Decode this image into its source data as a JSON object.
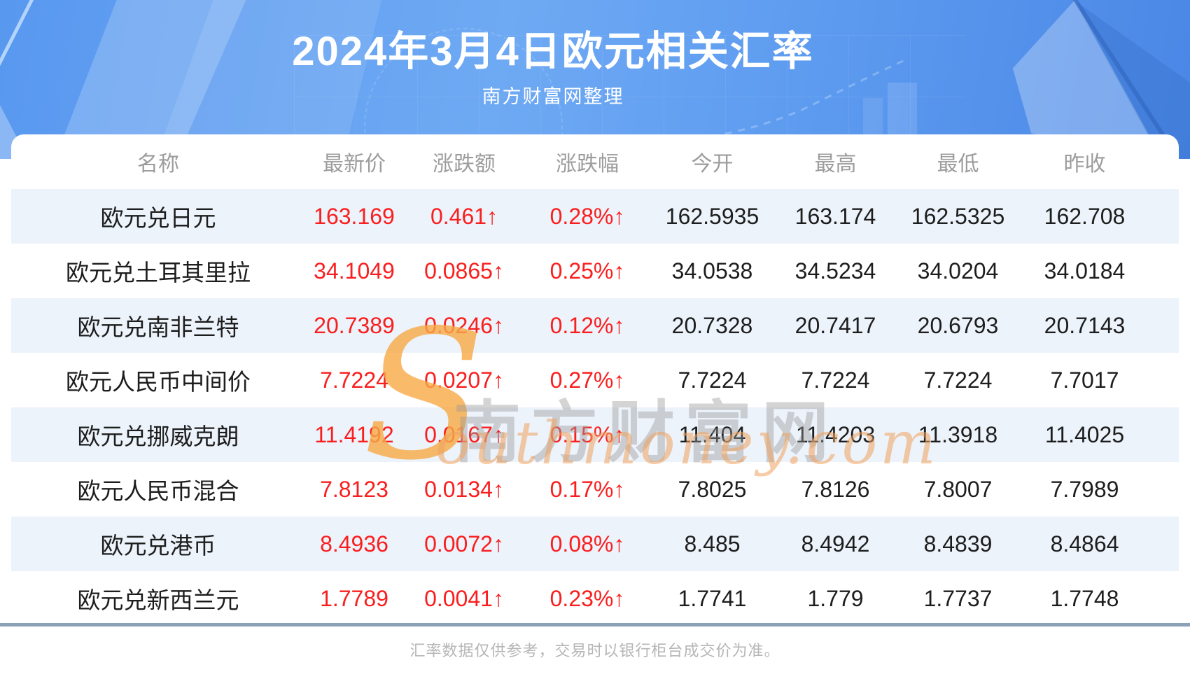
{
  "page": {
    "title": "2024年3月4日欧元相关汇率",
    "subtitle": "南方财富网整理",
    "footer_note": "汇率数据仅供参考，交易时以银行柜台成交价为准。",
    "watermark": {
      "logo_s": "S",
      "latin": "outhmoney.com",
      "chinese": "南方财富网"
    },
    "colors": {
      "hero_blue": "#5d9bf0",
      "accent_red": "#fa1e1e",
      "row_alt_blue": "#ecf3fb",
      "divider_gray_blue": "#8ba1b7",
      "header_text_gray": "#9c9c9c",
      "footer_text_gray": "#b6b6b6",
      "watermark_orange": "#f8a944"
    }
  },
  "chart_data": {
    "type": "table",
    "title": "2024年3月4日欧元相关汇率",
    "subtitle": "南方财富网整理",
    "columns": [
      "名称",
      "最新价",
      "涨跌额",
      "涨跌幅",
      "今开",
      "最高",
      "最低",
      "昨收"
    ],
    "red_column_indexes": [
      1,
      2,
      3
    ],
    "rows": [
      [
        "欧元兑日元",
        "163.169",
        "0.461↑",
        "0.28%↑",
        "162.5935",
        "163.174",
        "162.5325",
        "162.708"
      ],
      [
        "欧元兑土耳其里拉",
        "34.1049",
        "0.0865↑",
        "0.25%↑",
        "34.0538",
        "34.5234",
        "34.0204",
        "34.0184"
      ],
      [
        "欧元兑南非兰特",
        "20.7389",
        "0.0246↑",
        "0.12%↑",
        "20.7328",
        "20.7417",
        "20.6793",
        "20.7143"
      ],
      [
        "欧元人民币中间价",
        "7.7224",
        "0.0207↑",
        "0.27%↑",
        "7.7224",
        "7.7224",
        "7.7224",
        "7.7017"
      ],
      [
        "欧元兑挪威克朗",
        "11.4192",
        "0.0167↑",
        "0.15%↑",
        "11.404",
        "11.4203",
        "11.3918",
        "11.4025"
      ],
      [
        "欧元人民币混合",
        "7.8123",
        "0.0134↑",
        "0.17%↑",
        "7.8025",
        "7.8126",
        "7.8007",
        "7.7989"
      ],
      [
        "欧元兑港币",
        "8.4936",
        "0.0072↑",
        "0.08%↑",
        "8.485",
        "8.4942",
        "8.4839",
        "8.4864"
      ],
      [
        "欧元兑新西兰元",
        "1.7789",
        "0.0041↑",
        "0.23%↑",
        "1.7741",
        "1.779",
        "1.7737",
        "1.7748"
      ]
    ]
  }
}
